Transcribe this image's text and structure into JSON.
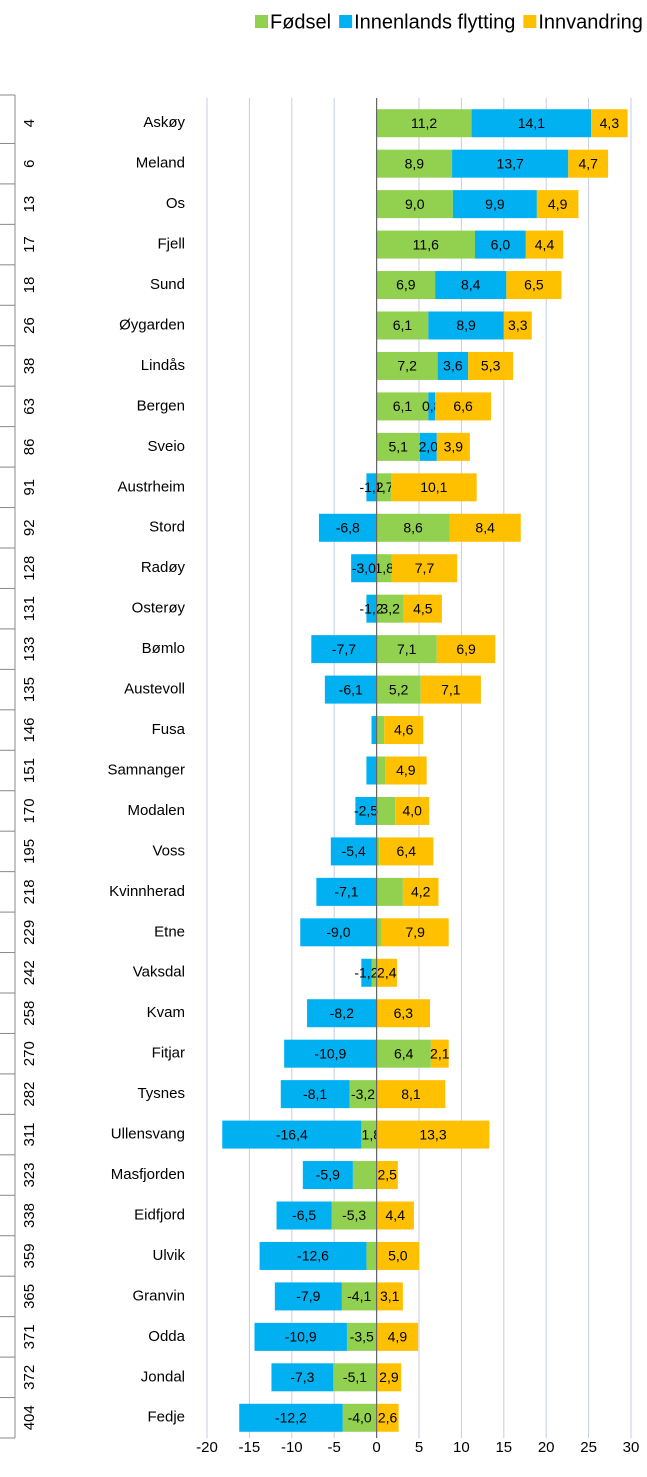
{
  "chart_data": {
    "type": "stacked_barh",
    "categories": [
      "Askøy",
      "Meland",
      "Os",
      "Fjell",
      "Sund",
      "Øygarden",
      "Lindås",
      "Bergen",
      "Sveio",
      "Austrheim",
      "Stord",
      "Radøy",
      "Osterøy",
      "Bømlo",
      "Austevoll",
      "Fusa",
      "Samnanger",
      "Modalen",
      "Voss",
      "Kvinnherad",
      "Etne",
      "Vaksdal",
      "Kvam",
      "Fitjar",
      "Tysnes",
      "Ullensvang",
      "Masfjorden",
      "Eidfjord",
      "Ulvik",
      "Granvin",
      "Odda",
      "Jondal",
      "Fedje"
    ],
    "ranks": [
      4,
      6,
      13,
      17,
      18,
      26,
      38,
      63,
      86,
      91,
      92,
      128,
      131,
      133,
      135,
      146,
      151,
      170,
      195,
      218,
      229,
      242,
      258,
      270,
      282,
      311,
      323,
      338,
      359,
      365,
      371,
      372,
      404
    ],
    "series": [
      {
        "name": "Fødsel",
        "color": "#92d050",
        "values": [
          11.2,
          8.9,
          9.0,
          11.6,
          6.9,
          6.1,
          7.2,
          6.1,
          5.1,
          1.7,
          8.6,
          1.8,
          3.2,
          7.1,
          5.2,
          0.9,
          1.0,
          2.2,
          0.3,
          3.1,
          0.6,
          -0.6,
          0,
          6.4,
          -3.2,
          -1.8,
          -2.8,
          -5.3,
          -1.2,
          -4.1,
          -3.5,
          -5.1,
          -4.0
        ],
        "value_labels": [
          "11,2",
          "8,9",
          "9,0",
          "11,6",
          "6,9",
          "6,1",
          "7,2",
          "6,1",
          "5,1",
          "1,7",
          "8,6",
          "1,8",
          "3,2",
          "7,1",
          "5,2",
          null,
          null,
          null,
          null,
          null,
          null,
          null,
          null,
          "6,4",
          "-3,2",
          "-1,8",
          null,
          "-5,3",
          null,
          "-4,1",
          "-3,5",
          "-5,1",
          "-4,0"
        ]
      },
      {
        "name": "Innenlands flytting",
        "color": "#00b0f0",
        "values": [
          14.1,
          13.7,
          9.9,
          6.0,
          8.4,
          8.9,
          3.6,
          0.8,
          2.0,
          -1.2,
          -6.8,
          -3.0,
          -1.2,
          -7.7,
          -6.1,
          -0.6,
          -1.2,
          -2.5,
          -5.4,
          -7.1,
          -9.0,
          -1.2,
          -8.2,
          -10.9,
          -8.1,
          -16.4,
          -5.9,
          -6.5,
          -12.6,
          -7.9,
          -10.9,
          -7.3,
          -12.2
        ],
        "value_labels": [
          "14,1",
          "13,7",
          "9,9",
          "6,0",
          "8,4",
          "8,9",
          "3,6",
          "0,8",
          "2,0",
          "-1,2",
          "-6,8",
          "-3,0",
          "-1,2",
          "-7,7",
          "-6,1",
          null,
          null,
          "-2,5",
          "-5,4",
          "-7,1",
          "-9,0",
          "-1,2",
          "-8,2",
          "-10,9",
          "-8,1",
          "-16,4",
          "-5,9",
          "-6,5",
          "-12,6",
          "-7,9",
          "-10,9",
          "-7,3",
          "-12,2"
        ]
      },
      {
        "name": "Innvandring",
        "color": "#ffc000",
        "values": [
          4.3,
          4.7,
          4.9,
          4.4,
          6.5,
          3.3,
          5.3,
          6.6,
          3.9,
          10.1,
          8.4,
          7.7,
          4.5,
          6.9,
          7.1,
          4.6,
          4.9,
          4.0,
          6.4,
          4.2,
          7.9,
          2.4,
          6.3,
          2.1,
          8.1,
          13.3,
          2.5,
          4.4,
          5.0,
          3.1,
          4.9,
          2.9,
          2.6
        ],
        "value_labels": [
          "4,3",
          "4,7",
          "4,9",
          "4,4",
          "6,5",
          "3,3",
          "5,3",
          "6,6",
          "3,9",
          "10,1",
          "8,4",
          "7,7",
          "4,5",
          "6,9",
          "7,1",
          "4,6",
          "4,9",
          "4,0",
          "6,4",
          "4,2",
          "7,9",
          "2,4",
          "6,3",
          "2,1",
          "8,1",
          "13,3",
          "2,5",
          "4,4",
          "5,0",
          "3,1",
          "4,9",
          "2,9",
          "2,6"
        ]
      }
    ],
    "xlim": [
      -20,
      30
    ],
    "xticks": [
      -20,
      -15,
      -10,
      -5,
      0,
      5,
      10,
      15,
      20,
      25,
      30
    ],
    "grid": true,
    "legend": "top"
  }
}
